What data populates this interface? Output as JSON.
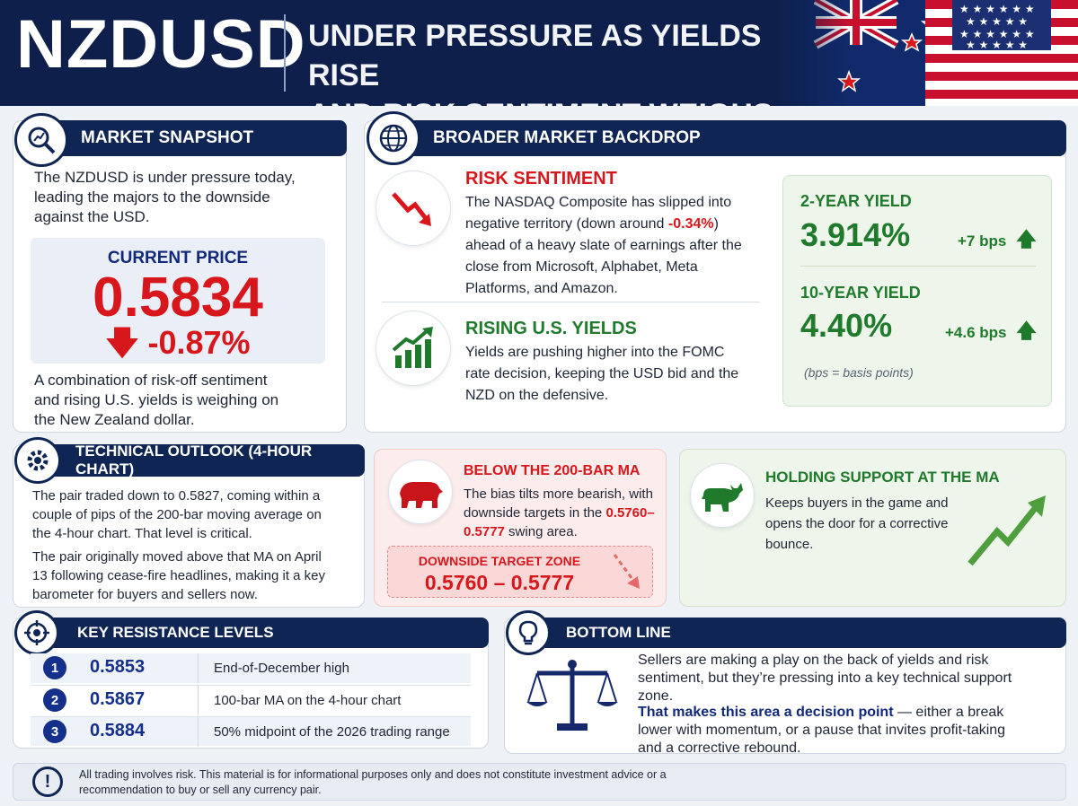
{
  "header": {
    "brand": "NZDUSD",
    "headline_line1": "UNDER PRESSURE AS YIELDS RISE",
    "headline_line2": "AND RISK SENTIMENT WEIGHS"
  },
  "snapshot": {
    "title": "MARKET SNAPSHOT",
    "intro": "The NZDUSD is under pressure today, leading the majors to the downside against the USD.",
    "price_label": "CURRENT PRICE",
    "price": "0.5834",
    "change": "-0.87%",
    "footer": "A combination of risk-off sentiment and rising U.S. yields is weighing on the New Zealand dollar."
  },
  "backdrop": {
    "title": "BROADER MARKET BACKDROP",
    "risk_title": "RISK SENTIMENT",
    "risk_pre": "The NASDAQ Composite has slipped into negative territory (down around ",
    "risk_value": "-0.34%",
    "risk_post": ") ahead of a heavy slate of earnings after the close from Microsoft, Alphabet, Meta Platforms, and Amazon.",
    "yields_title": "RISING U.S. YIELDS",
    "yields_text": "Yields are pushing higher into the FOMC rate decision, keeping the USD bid and the NZD on the defensive.",
    "y2_label": "2-YEAR YIELD",
    "y2_value": "3.914%",
    "y2_change": "+7 bps",
    "y10_label": "10-YEAR YIELD",
    "y10_value": "4.40%",
    "y10_change": "+4.6 bps",
    "bps_note": "(bps = basis points)"
  },
  "technical": {
    "title": "TECHNICAL OUTLOOK (4-HOUR CHART)",
    "p1": "The pair traded down to 0.5827, coming within a couple of pips of the 200-bar moving average on the 4-hour chart. That level is critical.",
    "p2": "The pair originally moved above that MA on April 13 following cease-fire headlines, making it a key barometer for buyers and sellers now."
  },
  "bear": {
    "title": "BELOW THE 200-BAR MA",
    "text_pre": "The bias tilts more bearish, with downside targets in the ",
    "text_value": "0.5760–0.5777",
    "text_post": " swing area.",
    "zone_label": "DOWNSIDE TARGET ZONE",
    "zone_value": "0.5760 – 0.5777"
  },
  "bull": {
    "title": "HOLDING SUPPORT AT THE MA",
    "text": "Keeps buyers in the game and opens the door for a corrective bounce."
  },
  "resistance": {
    "title": "KEY RESISTANCE LEVELS",
    "rows": [
      {
        "n": "1",
        "level": "0.5853",
        "desc": "End-of-December high"
      },
      {
        "n": "2",
        "level": "0.5867",
        "desc": "100-bar MA on the 4-hour chart"
      },
      {
        "n": "3",
        "level": "0.5884",
        "desc": "50% midpoint of the 2026 trading range"
      }
    ]
  },
  "bottom": {
    "title": "BOTTOM LINE",
    "p1": "Sellers are making a play on the back of yields and risk sentiment, but they’re pressing into a key technical support zone.",
    "p2_bold": "That makes this area a decision point",
    "p2_rest": " — either a break lower with momentum, or a pause that invites profit-taking and a corrective rebound."
  },
  "disclaimer": {
    "text": "All trading involves risk. This material is for informational purposes only and does not constitute investment advice or a recommendation to buy or sell any currency pair."
  },
  "colors": {
    "navy": "#0f2554",
    "red": "#d8171c",
    "green": "#1f7a2c",
    "accent_blue": "#14308a"
  }
}
